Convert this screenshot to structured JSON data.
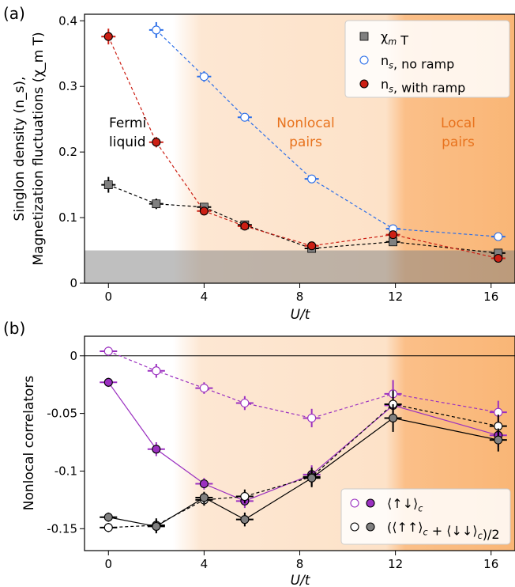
{
  "chart_data": [
    {
      "panel_label": "(a)",
      "type": "line",
      "ylabel_line1": "Singlon density (n_s),",
      "ylabel_line2": "Magnetization fluctuations (χ_m T)",
      "xlabel": "U/t",
      "xlim": [
        -1,
        17
      ],
      "ylim": [
        0,
        0.41
      ],
      "xticks": [
        0,
        4,
        8,
        12,
        16
      ],
      "yticks": [
        0,
        0.1,
        0.2,
        0.3,
        0.4
      ],
      "ytick_labels": [
        "0",
        "0.1",
        "0.2",
        "0.3",
        "0.4"
      ],
      "grey_band_max": 0.05,
      "regions": [
        {
          "label_line1": "Fermi",
          "label_line2": "liquid",
          "color": "#000000"
        },
        {
          "label_line1": "Nonlocal",
          "label_line2": "pairs",
          "color": "#e8731e"
        },
        {
          "label_line1": "Local",
          "label_line2": "pairs",
          "color": "#e8731e"
        }
      ],
      "legend_position": "top-right",
      "series": [
        {
          "name": "χ_m T",
          "color": "#808080",
          "marker": "square",
          "x": [
            0,
            2,
            4,
            5.7,
            8.5,
            11.9,
            16.3
          ],
          "y": [
            0.15,
            0.121,
            0.116,
            0.089,
            0.053,
            0.063,
            0.046
          ]
        },
        {
          "name": "n_s, no ramp",
          "color": "#2b6ee8",
          "marker": "open-circle",
          "x": [
            2,
            4,
            5.7,
            8.5,
            11.9,
            16.3
          ],
          "y": [
            0.386,
            0.315,
            0.253,
            0.159,
            0.083,
            0.071
          ]
        },
        {
          "name": "n_s, with ramp",
          "color": "#cc1f14",
          "marker": "circle",
          "x": [
            0,
            2,
            4,
            5.7,
            8.5,
            11.9,
            16.3
          ],
          "y": [
            0.376,
            0.215,
            0.11,
            0.087,
            0.057,
            0.074,
            0.038
          ]
        }
      ]
    },
    {
      "panel_label": "(b)",
      "type": "line",
      "ylabel": "Nonlocal correlators",
      "xlabel": "U/t",
      "xlim": [
        -1,
        17
      ],
      "ylim": [
        -0.169,
        0.017
      ],
      "xticks": [
        0,
        4,
        8,
        12,
        16
      ],
      "yticks": [
        0,
        -0.05,
        -0.1,
        -0.15
      ],
      "ytick_labels": [
        "0",
        "-0.05",
        "-0.1",
        "-0.15"
      ],
      "legend_position": "bottom-right",
      "legend_labels": [
        "⟨↑↓⟩_c",
        "(⟨↑↑⟩_c + ⟨↓↓⟩_c)/2"
      ],
      "series": [
        {
          "name": "⟨↑↓⟩_c, no ramp",
          "color": "#9b30c0",
          "marker": "open-circle",
          "dashed": true,
          "x": [
            0,
            2,
            4,
            5.7,
            8.5,
            11.9,
            16.3
          ],
          "y": [
            0.004,
            -0.013,
            -0.028,
            -0.041,
            -0.054,
            -0.033,
            -0.049
          ]
        },
        {
          "name": "⟨↑↓⟩_c, with ramp",
          "color": "#9b30c0",
          "marker": "circle",
          "dashed": false,
          "x": [
            0,
            2,
            4,
            5.7,
            8.5,
            11.9,
            16.3
          ],
          "y": [
            -0.023,
            -0.081,
            -0.111,
            -0.126,
            -0.103,
            -0.043,
            -0.069
          ]
        },
        {
          "name": "(⟨↑↑⟩_c + ⟨↓↓⟩_c)/2, no ramp",
          "color": "#000000",
          "marker": "open-circle",
          "dashed": true,
          "x": [
            0,
            2,
            4,
            5.7,
            8.5,
            11.9,
            16.3
          ],
          "y": [
            -0.149,
            -0.147,
            -0.125,
            -0.122,
            -0.105,
            -0.042,
            -0.061
          ]
        },
        {
          "name": "(⟨↑↑⟩_c + ⟨↓↓⟩_c)/2, with ramp",
          "color": "#000000",
          "marker": "circle",
          "dashed": false,
          "x": [
            0,
            2,
            4,
            5.7,
            8.5,
            11.9,
            16.3
          ],
          "y": [
            -0.14,
            -0.148,
            -0.123,
            -0.142,
            -0.106,
            -0.054,
            -0.073
          ]
        }
      ]
    }
  ]
}
